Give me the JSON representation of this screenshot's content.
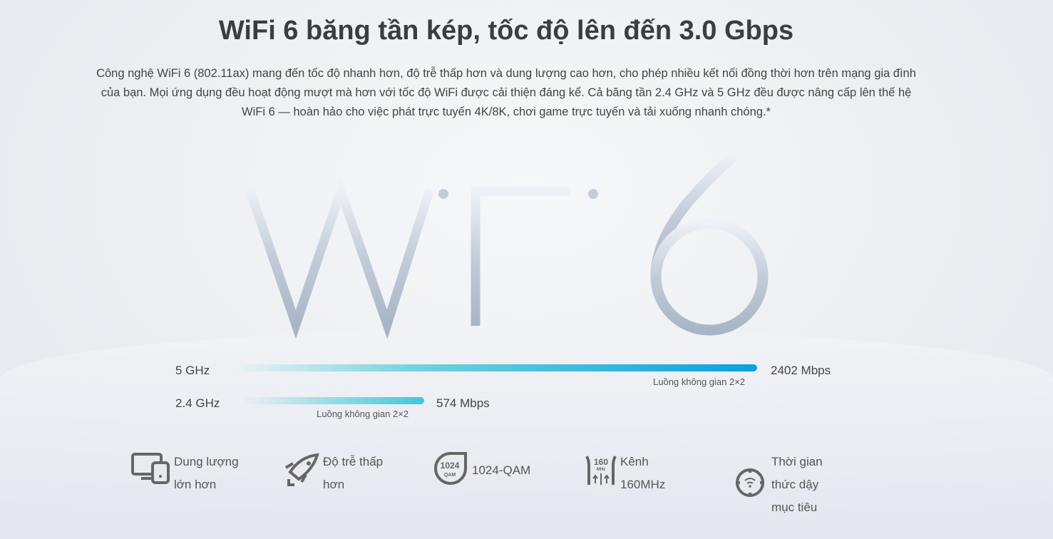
{
  "header": {
    "title": "WiFi 6 băng tần kép, tốc độ lên đến 3.0 Gbps",
    "description": "Công nghệ WiFi 6 (802.11ax) mang đến tốc độ nhanh hơn, độ trễ thấp hơn và dung lượng cao hơn, cho phép nhiều kết nối đồng thời hơn trên mạng gia đình của bạn. Mọi ứng dụng đều hoạt động mượt mà hơn với tốc độ WiFi được cải thiện đáng kể. Cả băng tần 2.4 GHz và 5 GHz đều được nâng cấp lên thế hệ WiFi 6 — hoàn hảo cho việc phát trực tuyến 4K/8K, chơi game trực tuyến và tải xuống nhanh chóng.*"
  },
  "logo": {
    "text": "WiFi 6"
  },
  "bands": [
    {
      "label": "5 GHz",
      "speed": "2402 Mbps",
      "streams": "Luồng không gian 2×2",
      "value_mbps": 2402,
      "color": "#0aa0dc"
    },
    {
      "label": "2.4 GHz",
      "speed": "574 Mbps",
      "streams": "Luồng không gian 2×2",
      "value_mbps": 574,
      "color": "#3ec8d8"
    }
  ],
  "features": [
    {
      "icon": "devices-icon",
      "line1": "Dung lượng",
      "line2": "lớn hơn"
    },
    {
      "icon": "rocket-icon",
      "line1": "Độ trễ thấp",
      "line2": "hơn"
    },
    {
      "icon": "qam-1024-icon",
      "line1": "1024-QAM",
      "icon_text1": "1024",
      "icon_text2": "QAM"
    },
    {
      "icon": "channel-160mhz-icon",
      "line1": "Kênh",
      "line2": "160MHz",
      "icon_text1": "160",
      "icon_text2": "MHz"
    },
    {
      "icon": "target-wake-time-icon",
      "line1": "Thời gian",
      "line2": "thức dậy",
      "line3": "mục tiêu"
    }
  ]
}
